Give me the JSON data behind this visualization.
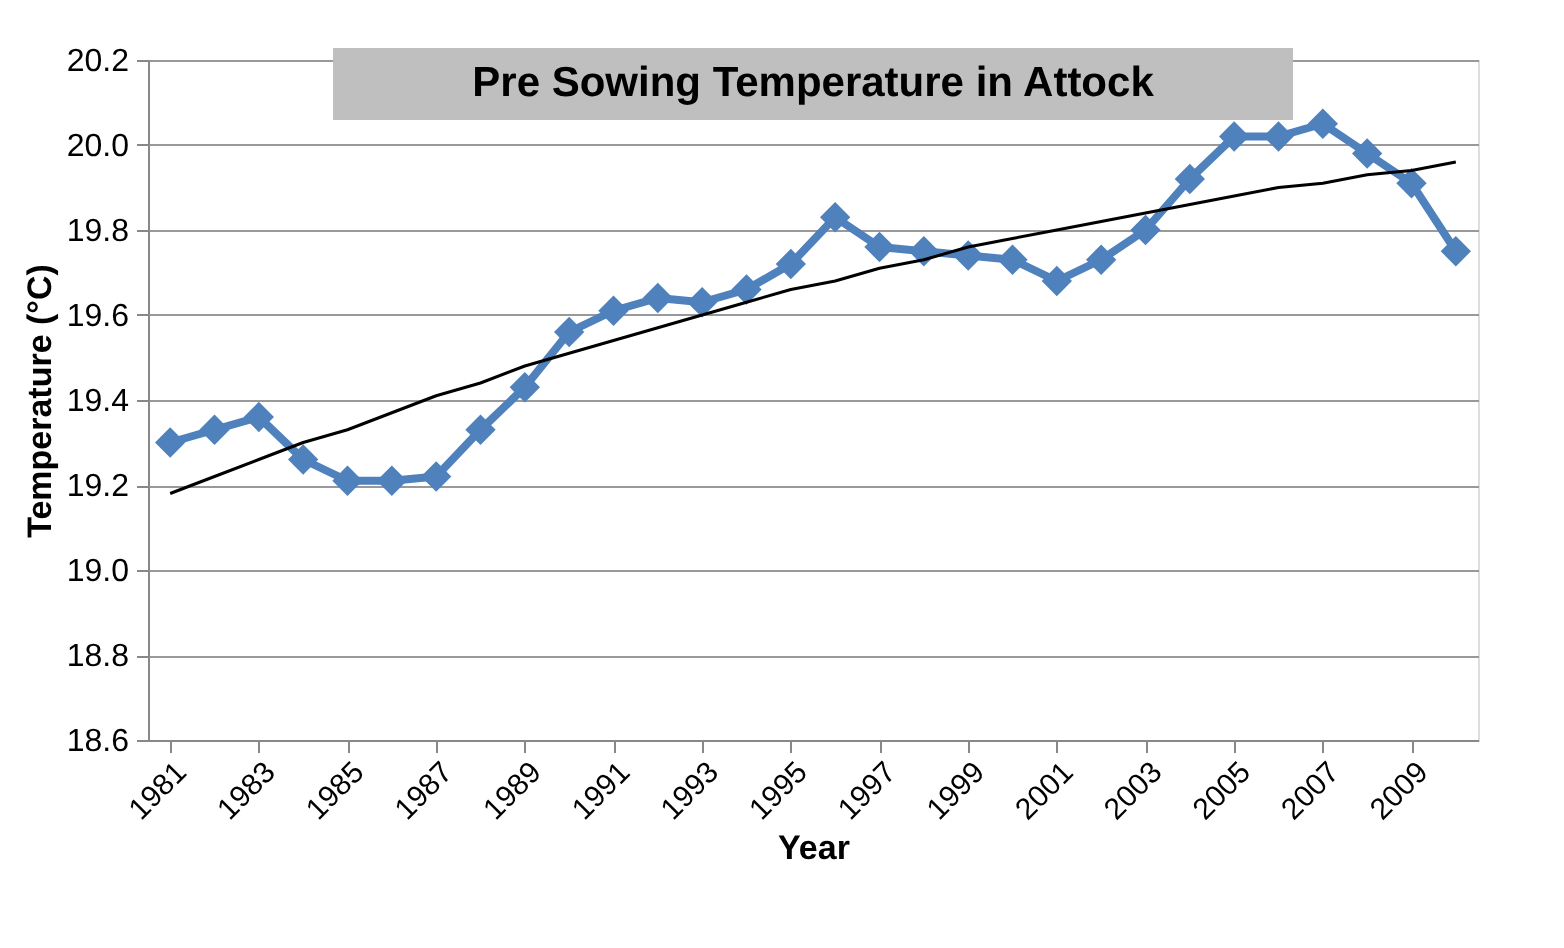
{
  "chart_data": {
    "type": "line",
    "title": "Pre Sowing Temperature in Attock",
    "xlabel": "Year",
    "ylabel": "Temperature (°C)",
    "categories": [
      "1981",
      null,
      "1983",
      null,
      "1985",
      null,
      "1987",
      null,
      "1989",
      null,
      "1991",
      null,
      "1993",
      null,
      "1995",
      null,
      "1997",
      null,
      "1999",
      null,
      "2001",
      null,
      "2003",
      null,
      "2005",
      null,
      "2007",
      null,
      "2009",
      null
    ],
    "series": [
      {
        "color": "#4f81bd",
        "marker": "diamond",
        "values": [
          19.3,
          19.33,
          19.36,
          19.26,
          19.21,
          19.21,
          19.22,
          19.33,
          19.43,
          19.56,
          19.61,
          19.64,
          19.63,
          19.66,
          19.72,
          19.83,
          19.76,
          19.75,
          19.74,
          19.73,
          19.68,
          19.73,
          19.8,
          19.92,
          20.02,
          20.02,
          20.05,
          19.98,
          19.91,
          19.75
        ]
      },
      {
        "color": "#000000",
        "marker": "none",
        "values": [
          19.18,
          19.22,
          19.26,
          19.3,
          19.33,
          19.37,
          19.41,
          19.44,
          19.48,
          19.51,
          19.54,
          19.57,
          19.6,
          19.63,
          19.66,
          19.68,
          19.71,
          19.73,
          19.76,
          19.78,
          19.8,
          19.82,
          19.84,
          19.86,
          19.88,
          19.9,
          19.91,
          19.93,
          19.94,
          19.96
        ]
      }
    ],
    "ylim": [
      18.6,
      20.2
    ],
    "yticks": [
      {
        "value": 18.6,
        "label": "18.6"
      },
      {
        "value": 18.8,
        "label": "18.8"
      },
      {
        "value": 19.0,
        "label": "19.0"
      },
      {
        "value": 19.2,
        "label": "19.2"
      },
      {
        "value": 19.4,
        "label": "19.4"
      },
      {
        "value": 19.6,
        "label": "19.6"
      },
      {
        "value": 19.8,
        "label": "19.8"
      },
      {
        "value": 20.0,
        "label": "20.0"
      },
      {
        "value": 20.2,
        "label": "20.2"
      }
    ],
    "grid": "y",
    "line_style": "solid"
  }
}
